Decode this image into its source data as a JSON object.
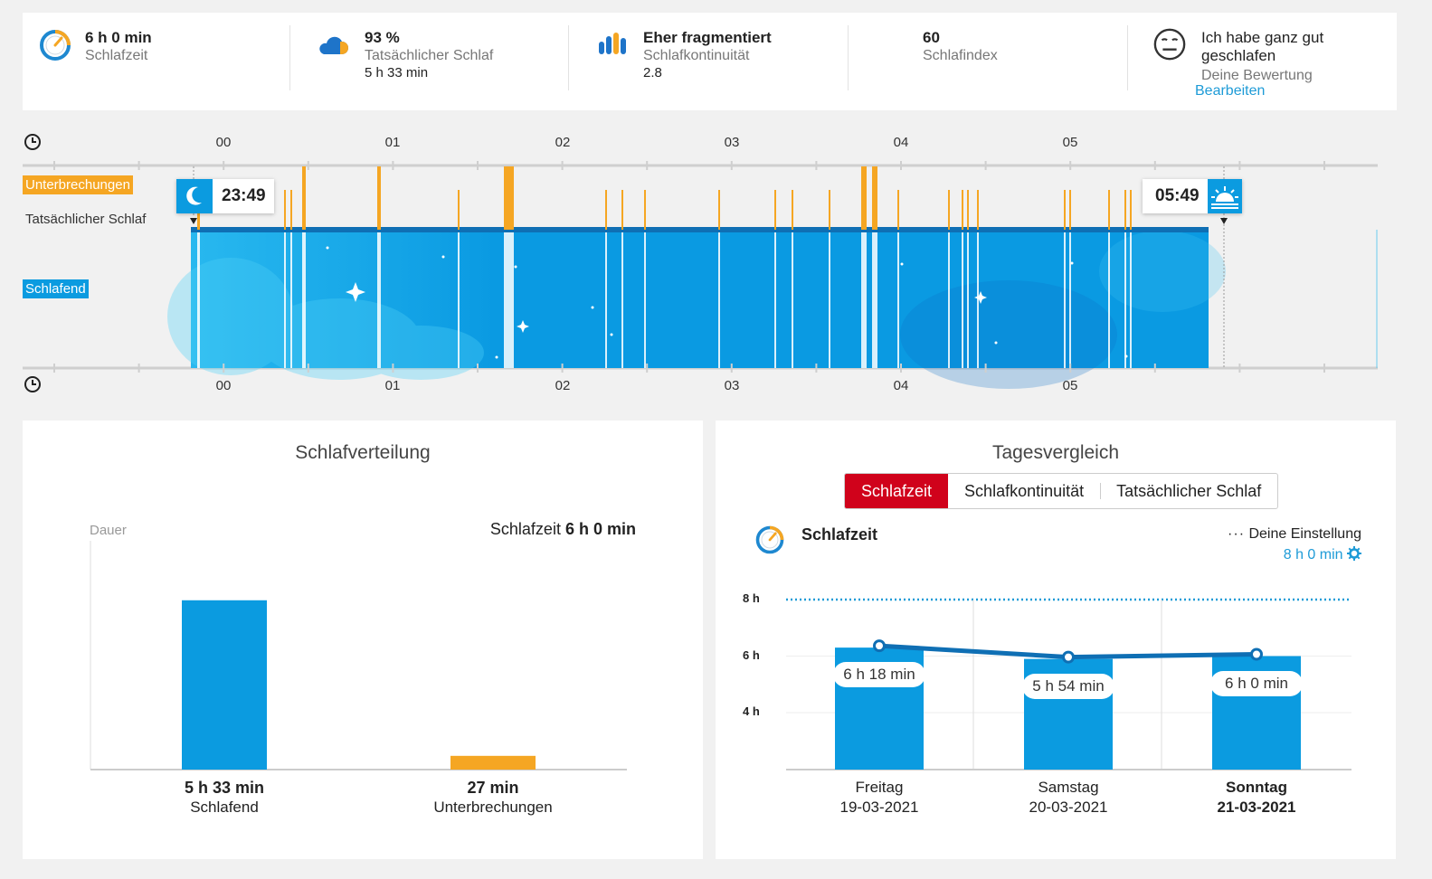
{
  "summary": {
    "sleep_time": {
      "value": "6 h 0 min",
      "label": "Schlafzeit"
    },
    "actual_sleep": {
      "value": "93 %",
      "label": "Tatsächlicher Schlaf",
      "detail": "5 h 33 min"
    },
    "continuity": {
      "value": "Eher fragmentiert",
      "label": "Schlafkontinuität",
      "detail": "2.8"
    },
    "index": {
      "value": "60",
      "label": "Schlafindex"
    },
    "rating": {
      "value": "Ich habe ganz gut geschlafen",
      "label": "Deine Bewertung",
      "edit": "Bearbeiten"
    }
  },
  "timeline": {
    "hour_ticks": [
      "00",
      "01",
      "02",
      "03",
      "04",
      "05"
    ],
    "interruptions_label": "Unterbrechungen",
    "actual_sleep_label": "Tatsächlicher Schlaf",
    "asleep_label": "Schlafend",
    "start_time": "23:49",
    "end_time": "05:49"
  },
  "distribution": {
    "title": "Schlafverteilung",
    "axis_label": "Dauer",
    "total_label": "Schlafzeit",
    "total_value": "6 h 0 min",
    "bars": [
      {
        "value": "5 h 33 min",
        "label": "Schlafend"
      },
      {
        "value": "27 min",
        "label": "Unterbrechungen"
      }
    ]
  },
  "comparison": {
    "title": "Tagesvergleich",
    "tabs": [
      "Schlafzeit",
      "Schlafkontinuität",
      "Tatsächlicher Schlaf"
    ],
    "metric_title": "Schlafzeit",
    "setting_label": "Deine Einstellung",
    "setting_value": "8 h 0 min",
    "days": [
      {
        "day": "Freitag",
        "date": "19-03-2021",
        "label": "6 h 18 min"
      },
      {
        "day": "Samstag",
        "date": "20-03-2021",
        "label": "5 h 54 min"
      },
      {
        "day": "Sonntag",
        "date": "21-03-2021",
        "label": "6 h 0 min"
      }
    ],
    "y_ticks": [
      "8 h",
      "6 h",
      "4 h"
    ]
  },
  "colors": {
    "sleep_blue": "#0b9be0",
    "dark_blue": "#0f6fb4",
    "orange": "#f5a623",
    "red_tab": "#d0021b",
    "link": "#1e9bd7"
  },
  "chart_data": [
    {
      "type": "bar",
      "title": "Schlafverteilung",
      "ylabel": "Dauer",
      "categories": [
        "Schlafend",
        "Unterbrechungen"
      ],
      "values": [
        333,
        27
      ],
      "unit": "min"
    },
    {
      "type": "bar",
      "title": "Tagesvergleich",
      "categories": [
        "Freitag 19-03-2021",
        "Samstag 20-03-2021",
        "Sonntag 21-03-2021"
      ],
      "series": [
        {
          "name": "Schlafzeit",
          "values": [
            6.3,
            5.9,
            6.0
          ]
        }
      ],
      "target": 8,
      "ylabel": "",
      "ylim": [
        2,
        8
      ],
      "unit": "h"
    }
  ]
}
